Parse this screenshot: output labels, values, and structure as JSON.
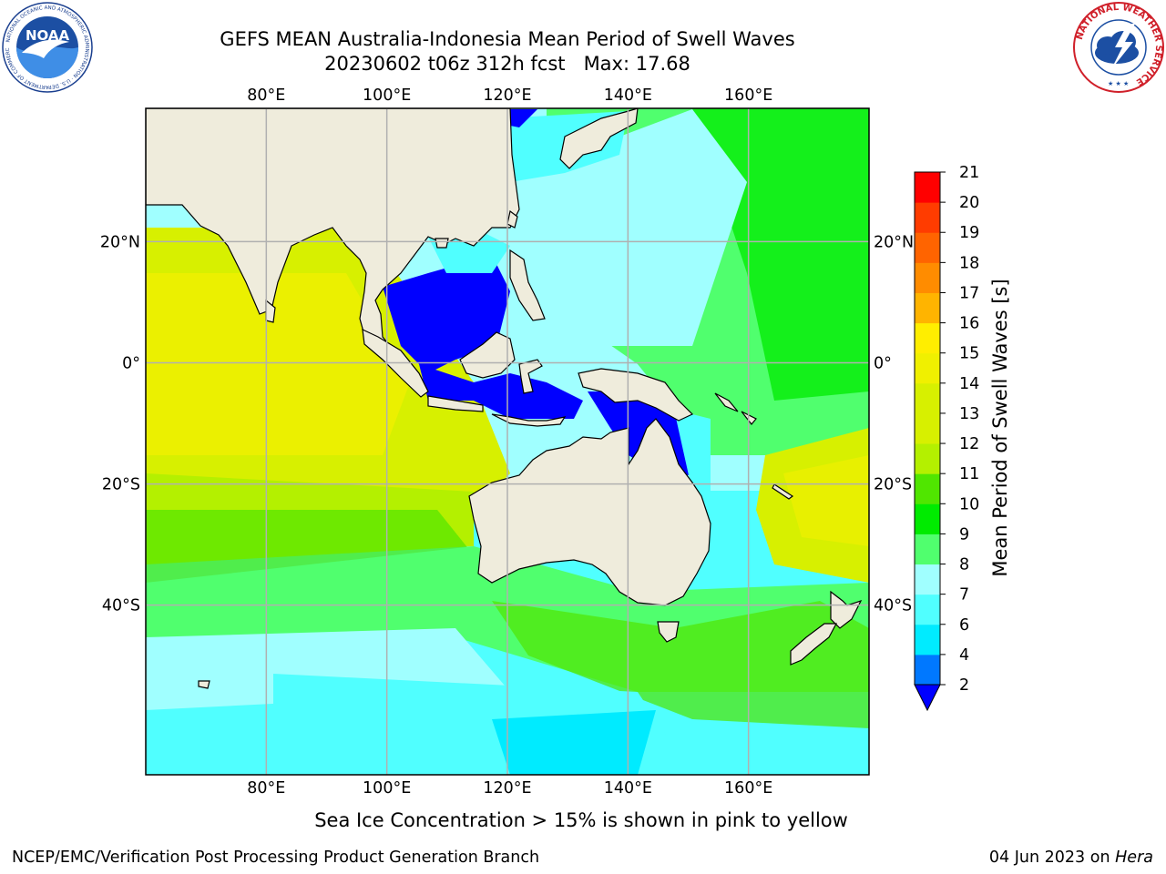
{
  "title_line1": "GEFS MEAN Australia-Indonesia Mean Period of Swell Waves",
  "title_line2": "20230602 t06z 312h fcst   Max: 17.68",
  "map": {
    "lon_labels": [
      "80°E",
      "100°E",
      "120°E",
      "140°E",
      "160°E"
    ],
    "lon_values": [
      80,
      100,
      120,
      140,
      160
    ],
    "lat_labels": [
      "20°N",
      "0°",
      "20°S",
      "40°S"
    ],
    "lat_values": [
      20,
      0,
      -20,
      -40
    ],
    "lon_range": [
      60,
      180
    ],
    "lat_range": [
      -68,
      42
    ],
    "land_color": "#efecdc",
    "grid_color": "#b0b0b0"
  },
  "colorbar": {
    "label": "Mean Period of Swell Waves [s]",
    "tick_labels": [
      "2",
      "4",
      "6",
      "7",
      "8",
      "9",
      "10",
      "11",
      "12",
      "13",
      "14",
      "15",
      "16",
      "17",
      "18",
      "19",
      "20",
      "21"
    ],
    "colors": [
      "#0078ff",
      "#00ebff",
      "#50ffff",
      "#a0ffff",
      "#50ff6e",
      "#00eb00",
      "#50e600",
      "#b4f000",
      "#d7f000",
      "#f0f000",
      "#ffee00",
      "#ffb400",
      "#ff8c00",
      "#ff6400",
      "#ff3c00",
      "#ff0000"
    ],
    "extend_color": "#0000ff",
    "extend": "min"
  },
  "sea_ice_note": "Sea Ice Concentration > 15% is shown in pink to yellow",
  "credit": "NCEP/EMC/Verification Post Processing Product Generation Branch",
  "run_date": "04 Jun 2023 on",
  "run_host": "Hera",
  "logos": {
    "noaa_text": "NOAA",
    "noaa_ring": "NATIONAL OCEANIC AND ATMOSPHERIC ADMINISTRATION · U.S. DEPARTMENT OF COMMERCE",
    "nws_ring": "NATIONAL WEATHER SERVICE"
  }
}
